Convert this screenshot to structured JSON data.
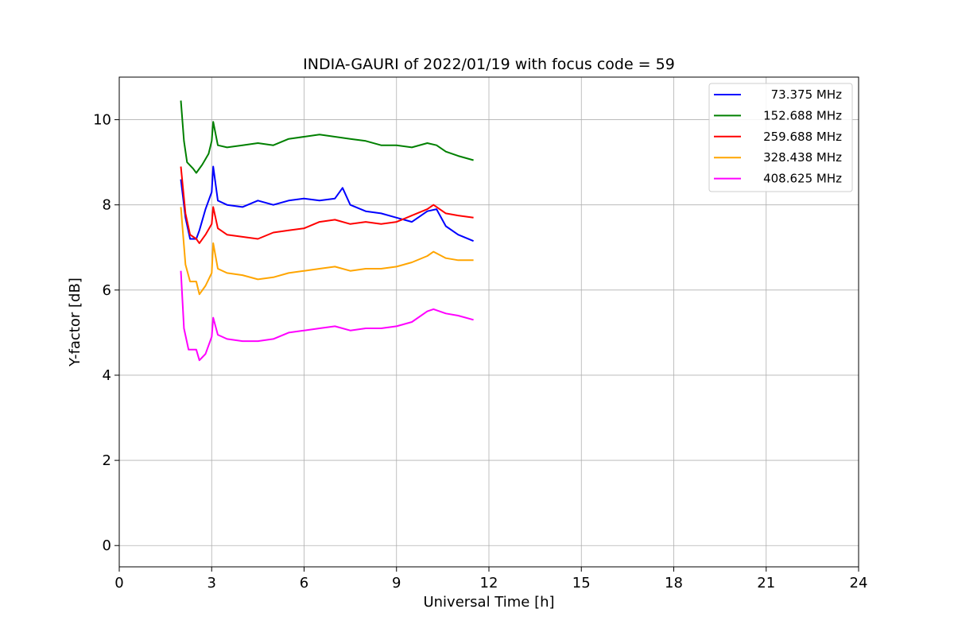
{
  "chart_data": {
    "type": "line",
    "title": "INDIA-GAURI of 2022/01/19 with focus code = 59",
    "xlabel": "Universal Time [h]",
    "ylabel": "Y-factor [dB]",
    "xlim": [
      0,
      24
    ],
    "ylim": [
      -0.5,
      11
    ],
    "xticks": [
      "0",
      "3",
      "6",
      "9",
      "12",
      "15",
      "18",
      "21",
      "24"
    ],
    "yticks": [
      "0",
      "2",
      "4",
      "6",
      "8",
      "10"
    ],
    "grid": true,
    "legend_position": "top-right",
    "series": [
      {
        "name": "73.375 MHz",
        "color": "#0000ff",
        "x": [
          2.0,
          2.15,
          2.3,
          2.5,
          2.6,
          2.8,
          3.0,
          3.05,
          3.2,
          3.5,
          4.0,
          4.5,
          5.0,
          5.5,
          6.0,
          6.5,
          7.0,
          7.25,
          7.5,
          8.0,
          8.5,
          9.0,
          9.5,
          10.0,
          10.3,
          10.6,
          11.0,
          11.5
        ],
        "y": [
          8.6,
          7.7,
          7.2,
          7.2,
          7.4,
          7.9,
          8.3,
          8.9,
          8.1,
          8.0,
          7.95,
          8.1,
          8.0,
          8.1,
          8.15,
          8.1,
          8.15,
          8.4,
          8.0,
          7.85,
          7.8,
          7.7,
          7.6,
          7.85,
          7.9,
          7.5,
          7.3,
          7.15
        ]
      },
      {
        "name": "152.688 MHz",
        "color": "#008000",
        "x": [
          2.0,
          2.1,
          2.2,
          2.4,
          2.5,
          2.7,
          2.9,
          3.0,
          3.05,
          3.2,
          3.5,
          4.0,
          4.5,
          5.0,
          5.5,
          6.0,
          6.5,
          7.0,
          7.5,
          8.0,
          8.5,
          9.0,
          9.5,
          10.0,
          10.3,
          10.6,
          11.0,
          11.5
        ],
        "y": [
          10.45,
          9.5,
          9.0,
          8.85,
          8.75,
          8.95,
          9.2,
          9.5,
          9.95,
          9.4,
          9.35,
          9.4,
          9.45,
          9.4,
          9.55,
          9.6,
          9.65,
          9.6,
          9.55,
          9.5,
          9.4,
          9.4,
          9.35,
          9.45,
          9.4,
          9.25,
          9.15,
          9.05
        ]
      },
      {
        "name": "259.688 MHz",
        "color": "#ff0000",
        "x": [
          2.0,
          2.15,
          2.3,
          2.5,
          2.6,
          2.8,
          3.0,
          3.05,
          3.2,
          3.5,
          4.0,
          4.5,
          5.0,
          5.5,
          6.0,
          6.5,
          7.0,
          7.5,
          8.0,
          8.5,
          9.0,
          9.5,
          10.0,
          10.2,
          10.6,
          11.0,
          11.5
        ],
        "y": [
          8.9,
          7.8,
          7.3,
          7.2,
          7.1,
          7.3,
          7.55,
          7.95,
          7.45,
          7.3,
          7.25,
          7.2,
          7.35,
          7.4,
          7.45,
          7.6,
          7.65,
          7.55,
          7.6,
          7.55,
          7.6,
          7.75,
          7.9,
          8.0,
          7.8,
          7.75,
          7.7
        ]
      },
      {
        "name": "328.438 MHz",
        "color": "#ffa500",
        "x": [
          2.0,
          2.15,
          2.3,
          2.5,
          2.6,
          2.8,
          3.0,
          3.05,
          3.2,
          3.5,
          4.0,
          4.5,
          5.0,
          5.5,
          6.0,
          6.5,
          7.0,
          7.5,
          8.0,
          8.5,
          9.0,
          9.5,
          10.0,
          10.2,
          10.6,
          11.0,
          11.5
        ],
        "y": [
          7.95,
          6.6,
          6.2,
          6.2,
          5.9,
          6.1,
          6.4,
          7.1,
          6.5,
          6.4,
          6.35,
          6.25,
          6.3,
          6.4,
          6.45,
          6.5,
          6.55,
          6.45,
          6.5,
          6.5,
          6.55,
          6.65,
          6.8,
          6.9,
          6.75,
          6.7,
          6.7
        ]
      },
      {
        "name": "408.625 MHz",
        "color": "#ff00ff",
        "x": [
          2.0,
          2.1,
          2.25,
          2.5,
          2.6,
          2.8,
          3.0,
          3.05,
          3.2,
          3.5,
          4.0,
          4.5,
          5.0,
          5.5,
          6.0,
          6.5,
          7.0,
          7.5,
          8.0,
          8.5,
          9.0,
          9.5,
          10.0,
          10.2,
          10.6,
          11.0,
          11.5
        ],
        "y": [
          6.45,
          5.1,
          4.6,
          4.6,
          4.35,
          4.5,
          4.9,
          5.35,
          4.95,
          4.85,
          4.8,
          4.8,
          4.85,
          5.0,
          5.05,
          5.1,
          5.15,
          5.05,
          5.1,
          5.1,
          5.15,
          5.25,
          5.5,
          5.55,
          5.45,
          5.4,
          5.3
        ]
      }
    ]
  }
}
